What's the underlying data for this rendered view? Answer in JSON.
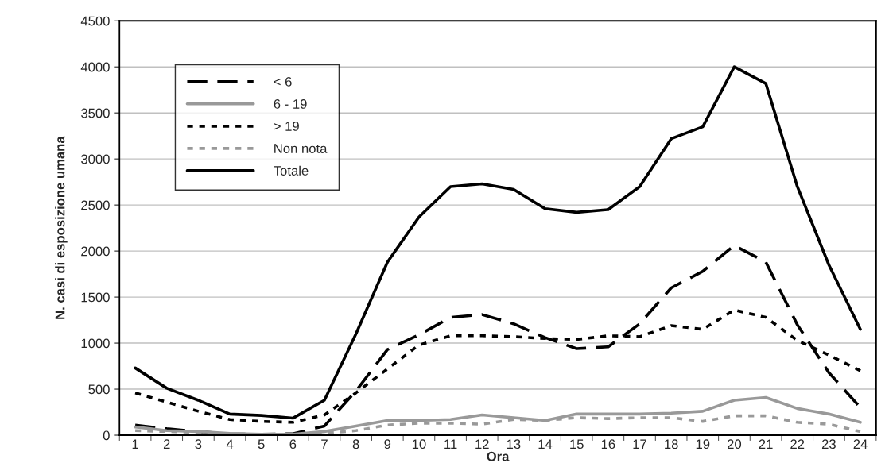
{
  "chart_data": {
    "type": "line",
    "xlabel": "Ora",
    "ylabel": "N. casi di esposizione umana",
    "categories": [
      "1",
      "2",
      "3",
      "4",
      "5",
      "6",
      "7",
      "8",
      "9",
      "10",
      "11",
      "12",
      "13",
      "14",
      "15",
      "16",
      "17",
      "18",
      "19",
      "20",
      "21",
      "22",
      "23",
      "24"
    ],
    "ylim": [
      0,
      4500
    ],
    "yticks": [
      0,
      500,
      1000,
      1500,
      2000,
      2500,
      3000,
      3500,
      4000,
      4500
    ],
    "grid": "y",
    "legend": "top left",
    "marker": "none",
    "series": [
      {
        "name": "< 6",
        "color": "#000000",
        "line_style": "dashed",
        "values": [
          110,
          70,
          40,
          15,
          10,
          15,
          100,
          480,
          930,
          1090,
          1280,
          1310,
          1210,
          1060,
          940,
          960,
          1210,
          1600,
          1780,
          2060,
          1880,
          1200,
          680,
          300
        ]
      },
      {
        "name": "6 - 19",
        "color": "#999999",
        "line_style": "solid",
        "values": [
          90,
          50,
          40,
          20,
          10,
          10,
          40,
          100,
          160,
          160,
          170,
          220,
          190,
          160,
          230,
          230,
          230,
          240,
          260,
          380,
          410,
          290,
          230,
          140
        ]
      },
      {
        "name": "> 19",
        "color": "#000000",
        "line_style": "dotted",
        "values": [
          460,
          360,
          260,
          170,
          150,
          140,
          220,
          460,
          720,
          980,
          1080,
          1080,
          1070,
          1050,
          1040,
          1080,
          1070,
          1190,
          1150,
          1360,
          1280,
          1030,
          870,
          700
        ]
      },
      {
        "name": "Non nota",
        "color": "#999999",
        "line_style": "dotted",
        "values": [
          50,
          40,
          30,
          10,
          5,
          5,
          20,
          50,
          110,
          130,
          130,
          120,
          170,
          160,
          190,
          180,
          190,
          190,
          150,
          210,
          210,
          140,
          120,
          40
        ]
      },
      {
        "name": "Totale",
        "color": "#000000",
        "line_style": "solid",
        "values": [
          730,
          510,
          380,
          230,
          215,
          185,
          380,
          1100,
          1880,
          2370,
          2700,
          2730,
          2670,
          2460,
          2420,
          2450,
          2700,
          3220,
          3350,
          4000,
          3820,
          2700,
          1850,
          1150
        ]
      }
    ]
  }
}
